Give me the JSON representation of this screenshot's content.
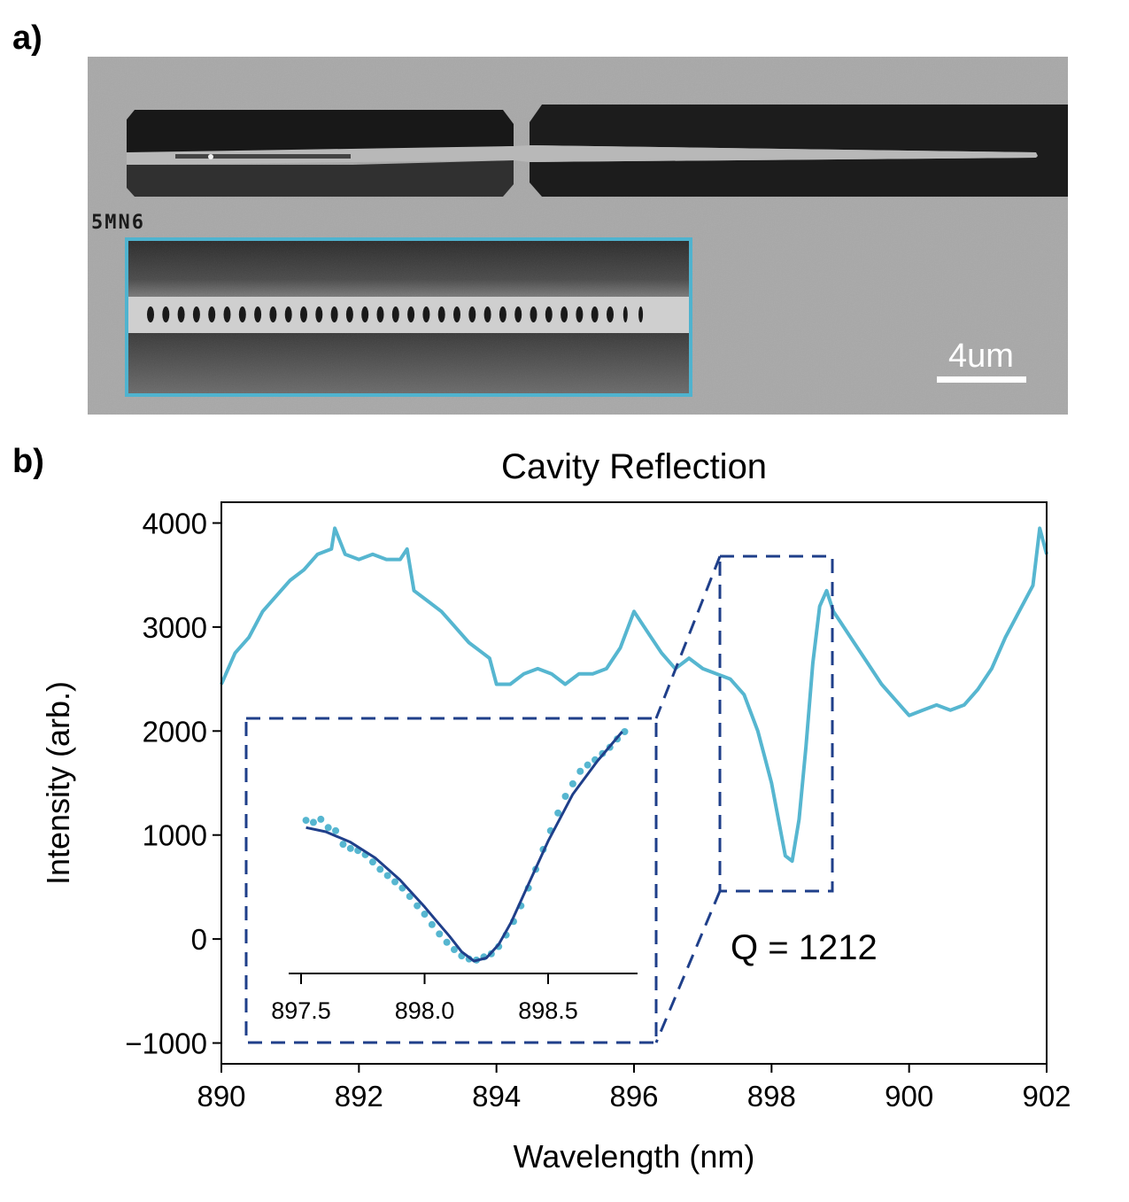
{
  "panel_a": {
    "label": "a)",
    "sample_label": "5MN6",
    "scale_bar_text": "4um",
    "inset_border_color": "#4fb3cf"
  },
  "panel_b": {
    "label": "b)",
    "annotation": "Q = 1212"
  },
  "chart_data": [
    {
      "type": "line",
      "title": "Cavity Reflection",
      "xlabel": "Wavelength (nm)",
      "ylabel": "Intensity (arb.)",
      "xlim": [
        890,
        902
      ],
      "ylim": [
        -1200,
        4200
      ],
      "xticks": [
        890,
        892,
        894,
        896,
        898,
        900,
        902
      ],
      "xtick_labels": [
        "890",
        "892",
        "894",
        "896",
        "898",
        "900",
        "902"
      ],
      "yticks": [
        -1000,
        0,
        1000,
        2000,
        3000,
        4000
      ],
      "ytick_labels": [
        "−1000",
        "0",
        "1000",
        "2000",
        "3000",
        "4000"
      ],
      "grid": false,
      "color": "#56b6d0",
      "series": [
        {
          "x": [
            890.0,
            890.2,
            890.4,
            890.6,
            890.8,
            891.0,
            891.2,
            891.4,
            891.6,
            891.65,
            891.8,
            892.0,
            892.2,
            892.4,
            892.6,
            892.7,
            892.8,
            893.0,
            893.2,
            893.4,
            893.6,
            893.8,
            893.9,
            894.0,
            894.2,
            894.4,
            894.6,
            894.8,
            895.0,
            895.2,
            895.4,
            895.6,
            895.8,
            896.0,
            896.2,
            896.4,
            896.6,
            896.8,
            897.0,
            897.2,
            897.4,
            897.6,
            897.8,
            897.9,
            898.0,
            898.1,
            898.2,
            898.3,
            898.4,
            898.5,
            898.6,
            898.7,
            898.8,
            898.9,
            899.0,
            899.2,
            899.4,
            899.6,
            899.8,
            900.0,
            900.2,
            900.4,
            900.6,
            900.8,
            901.0,
            901.2,
            901.4,
            901.6,
            901.8,
            901.9,
            902.0
          ],
          "y": [
            2450,
            2750,
            2900,
            3150,
            3300,
            3450,
            3550,
            3700,
            3750,
            3950,
            3700,
            3650,
            3700,
            3650,
            3650,
            3750,
            3350,
            3250,
            3150,
            3000,
            2850,
            2750,
            2700,
            2450,
            2450,
            2550,
            2600,
            2550,
            2450,
            2550,
            2550,
            2600,
            2800,
            3150,
            2950,
            2750,
            2600,
            2700,
            2600,
            2550,
            2500,
            2350,
            2000,
            1750,
            1500,
            1150,
            800,
            750,
            1150,
            1850,
            2650,
            3200,
            3350,
            3150,
            3050,
            2850,
            2650,
            2450,
            2300,
            2150,
            2200,
            2250,
            2200,
            2250,
            2400,
            2600,
            2900,
            3150,
            3400,
            3950,
            3700
          ]
        }
      ]
    },
    {
      "type": "scatter",
      "title": "",
      "xlim": [
        897.5,
        898.85
      ],
      "xticks": [
        897.5,
        898.0,
        898.5
      ],
      "xtick_labels": [
        "897.5",
        "898.0",
        "898.5"
      ],
      "yticks": [],
      "point_color": "#56b6d0",
      "fit_color": "#1f3f8a",
      "series": [
        {
          "x": [
            897.52,
            897.55,
            897.58,
            897.61,
            897.64,
            897.67,
            897.7,
            897.73,
            897.76,
            897.79,
            897.82,
            897.85,
            897.88,
            897.91,
            897.94,
            897.97,
            898.0,
            898.03,
            898.06,
            898.09,
            898.12,
            898.15,
            898.18,
            898.21,
            898.24,
            898.27,
            898.3,
            898.33,
            898.36,
            898.39,
            898.42,
            898.45,
            898.48,
            898.51,
            898.54,
            898.57,
            898.6,
            898.63,
            898.66,
            898.69,
            898.72,
            898.75,
            898.78,
            898.81
          ],
          "y": [
            1150,
            1130,
            1160,
            1080,
            1050,
            920,
            880,
            860,
            820,
            750,
            680,
            620,
            560,
            500,
            420,
            330,
            250,
            150,
            60,
            -20,
            -90,
            -150,
            -180,
            -190,
            -160,
            -130,
            -60,
            50,
            180,
            330,
            500,
            680,
            870,
            1050,
            1220,
            1380,
            1500,
            1620,
            1680,
            1730,
            1790,
            1850,
            1930,
            2000
          ]
        },
        {
          "name": "fit",
          "x": [
            897.52,
            897.6,
            897.7,
            897.8,
            897.9,
            898.0,
            898.05,
            898.1,
            898.15,
            898.2,
            898.25,
            898.3,
            898.35,
            898.4,
            898.5,
            898.6,
            898.7,
            898.8
          ],
          "y": [
            1080,
            1040,
            940,
            790,
            580,
            320,
            180,
            40,
            -110,
            -200,
            -170,
            -40,
            170,
            430,
            950,
            1400,
            1720,
            2000
          ]
        }
      ]
    }
  ]
}
